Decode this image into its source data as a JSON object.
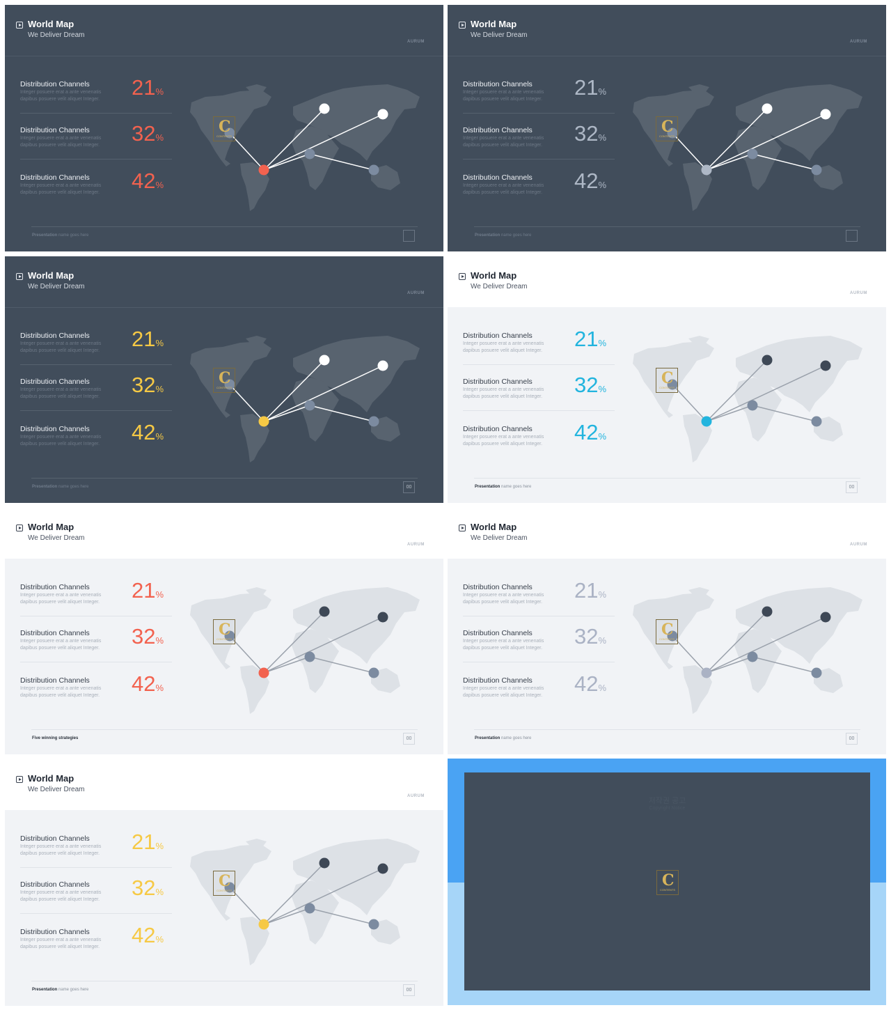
{
  "slides": [
    {
      "theme": "dark",
      "title": "World Map",
      "subtitle": "We Deliver Dream",
      "brand": "AURUM",
      "accent": "#f2624f",
      "footer_bold": "Presentation",
      "footer_rest": " name goes here",
      "page": ""
    },
    {
      "theme": "dark",
      "title": "World Map",
      "subtitle": "We Deliver Dream",
      "brand": "AURUM",
      "accent": "#aeb8c6",
      "footer_bold": "Presentation",
      "footer_rest": " name goes here",
      "page": ""
    },
    {
      "theme": "dark",
      "title": "World Map",
      "subtitle": "We Deliver Dream",
      "brand": "AURUM",
      "accent": "#f6c945",
      "footer_bold": "Presentation",
      "footer_rest": " name goes here",
      "page": "00"
    },
    {
      "theme": "light",
      "title": "World Map",
      "subtitle": "We Deliver Dream",
      "brand": "AURUM",
      "accent": "#22b4de",
      "footer_bold": "Presentation",
      "footer_rest": " name goes here",
      "page": "00"
    },
    {
      "theme": "light",
      "title": "World Map",
      "subtitle": "We Deliver Dream",
      "brand": "AURUM",
      "accent": "#f2624f",
      "footer_bold": "Five winning strategies",
      "footer_rest": "",
      "page": "00"
    },
    {
      "theme": "light",
      "title": "World Map",
      "subtitle": "We Deliver Dream",
      "brand": "AURUM",
      "accent": "#aab2c4",
      "footer_bold": "Presentation",
      "footer_rest": " name goes here",
      "page": "00"
    },
    {
      "theme": "light",
      "title": "World Map",
      "subtitle": "We Deliver Dream",
      "brand": "AURUM",
      "accent": "#f6c945",
      "footer_bold": "Presentation",
      "footer_rest": " name goes here",
      "page": "00"
    }
  ],
  "rows": [
    {
      "label": "Distribution Channels",
      "desc1": "Integer posuere erat a ante venenatis",
      "desc2": "dapibus posuere velit aliquet Integer.",
      "value": "21",
      "unit": "%"
    },
    {
      "label": "Distribution Channels",
      "desc1": "Integer posuere erat a ante venenatis",
      "desc2": "dapibus posuere velit aliquet Integer.",
      "value": "32",
      "unit": "%"
    },
    {
      "label": "Distribution Channels",
      "desc1": "Integer posuere erat a ante venenatis",
      "desc2": "dapibus posuere velit aliquet Integer.",
      "value": "42",
      "unit": "%"
    }
  ],
  "logo_letter": "C",
  "logo_text": "CONTENTS",
  "notice": {
    "title": "저작권 공고",
    "subtitle": "Copyright Notice"
  },
  "icons": {
    "title": "play-icon",
    "logo": "contents-logo-icon"
  }
}
